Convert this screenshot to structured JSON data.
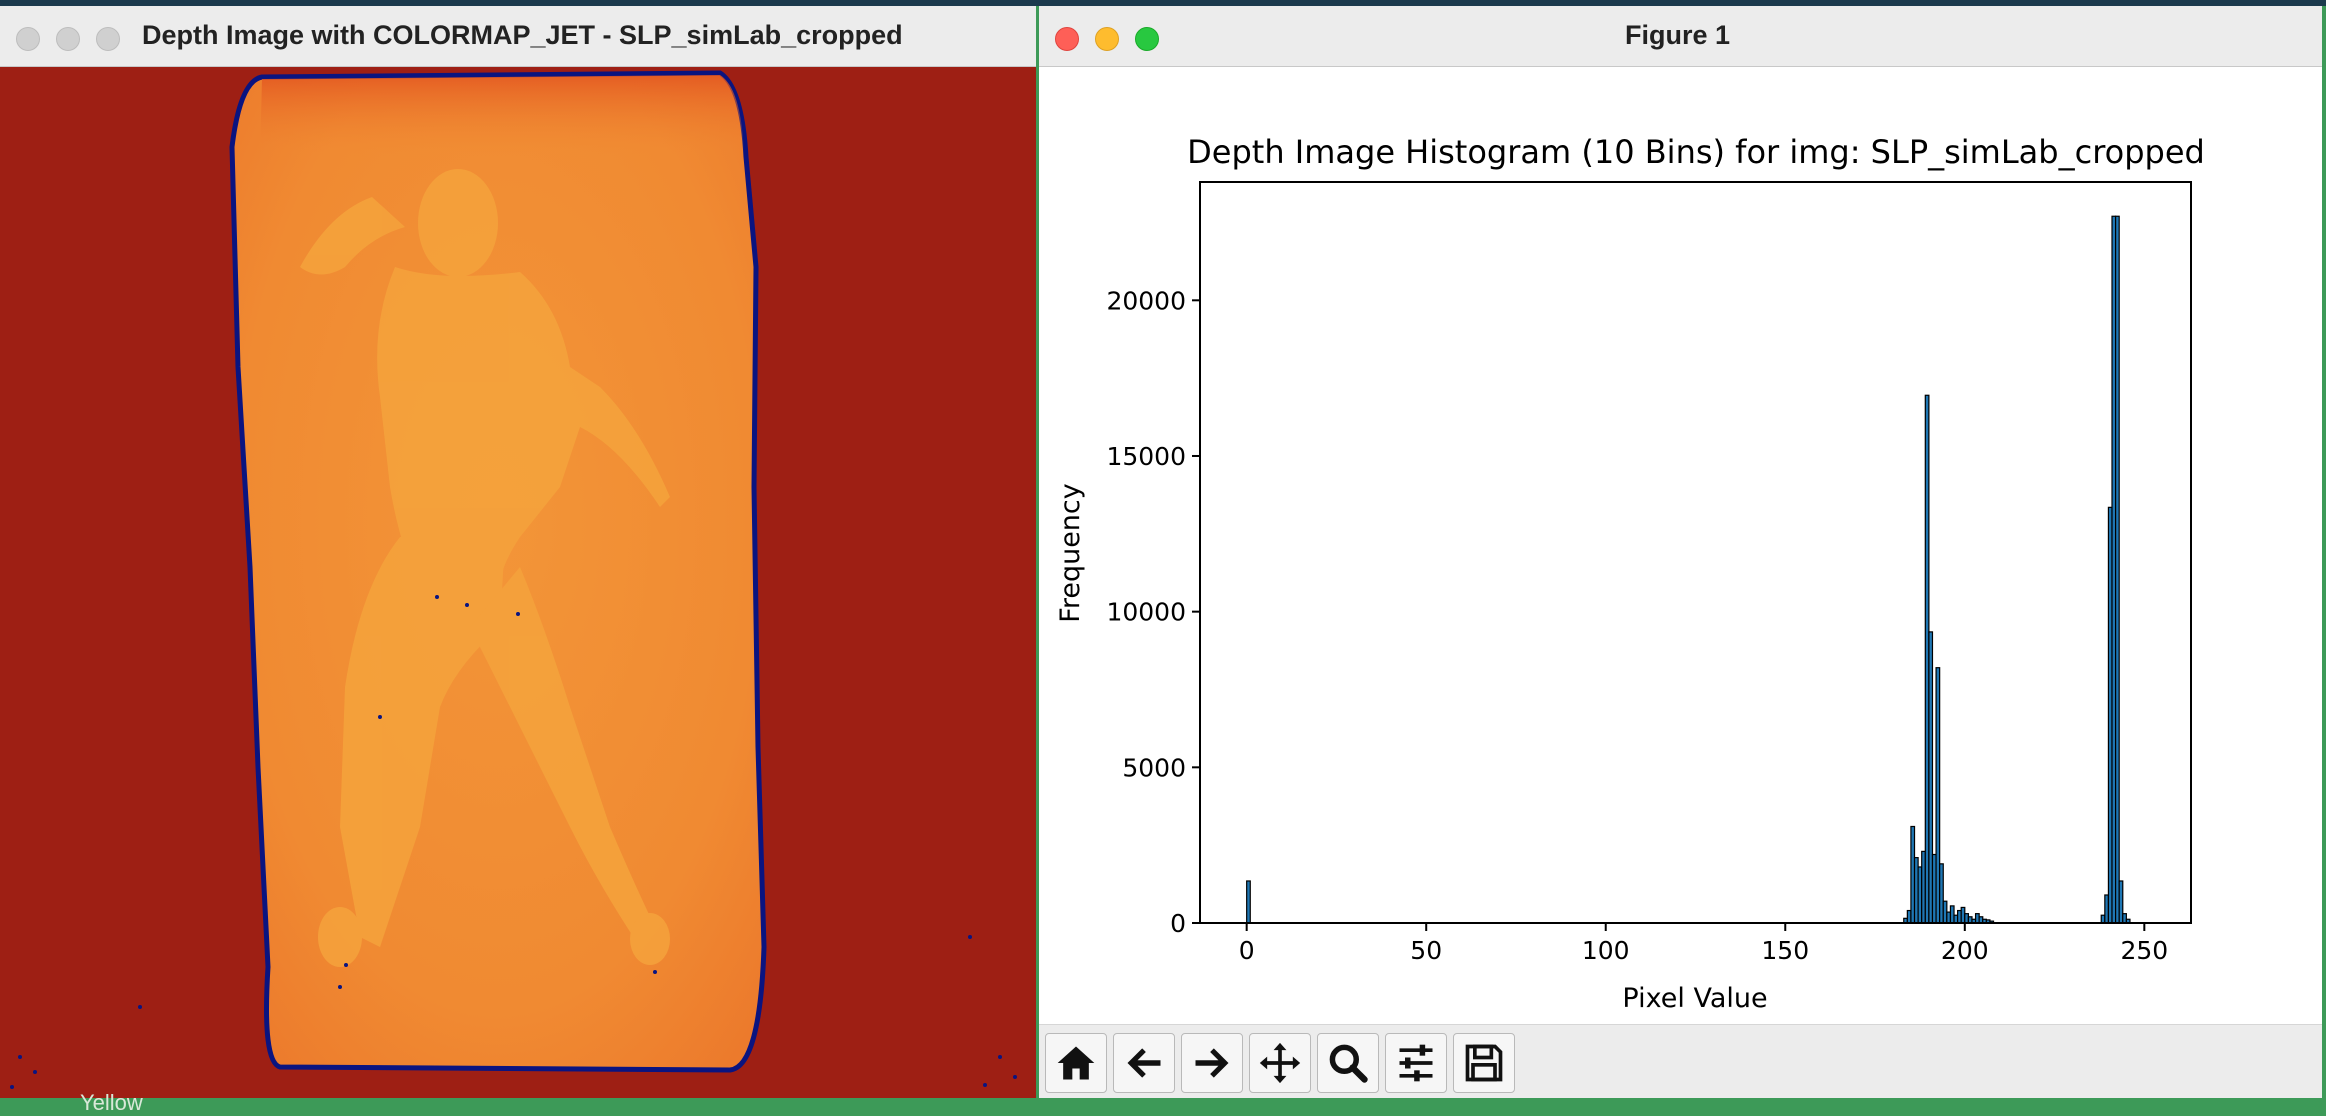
{
  "left_window": {
    "title": "Depth Image with COLORMAP_JET - SLP_simLab_cropped"
  },
  "right_window": {
    "title": "Figure 1",
    "toolbar": [
      {
        "icon": "home-icon",
        "name": "home-button"
      },
      {
        "icon": "back-arrow-icon",
        "name": "back-button"
      },
      {
        "icon": "forward-arrow-icon",
        "name": "forward-button"
      },
      {
        "icon": "pan-icon",
        "name": "pan-button"
      },
      {
        "icon": "zoom-icon",
        "name": "zoom-button"
      },
      {
        "icon": "sliders-icon",
        "name": "configure-subplots-button"
      },
      {
        "icon": "save-icon",
        "name": "save-button"
      }
    ]
  },
  "background_label": "Yellow",
  "colors": {
    "bar_fill": "#1f77b4",
    "bar_edge": "#000000",
    "depth_background": "#9e1f14",
    "depth_mattress": "#f18a32",
    "depth_border": "#0a1480"
  },
  "chart_data": {
    "type": "bar",
    "title": "Depth Image Histogram (10 Bins) for img: SLP_simLab_cropped",
    "xlabel": "Pixel Value",
    "ylabel": "Frequency",
    "xlim": [
      -13,
      263
    ],
    "ylim": [
      0,
      23800
    ],
    "xticks": [
      0,
      50,
      100,
      150,
      200,
      250
    ],
    "yticks": [
      0,
      5000,
      10000,
      15000,
      20000
    ],
    "bin_width": 1,
    "bars": [
      {
        "x": 0,
        "value": 1350
      },
      {
        "x": 183,
        "value": 150
      },
      {
        "x": 184,
        "value": 400
      },
      {
        "x": 185,
        "value": 3100
      },
      {
        "x": 186,
        "value": 2100
      },
      {
        "x": 187,
        "value": 1800
      },
      {
        "x": 188,
        "value": 2300
      },
      {
        "x": 189,
        "value": 16950
      },
      {
        "x": 190,
        "value": 9350
      },
      {
        "x": 191,
        "value": 2200
      },
      {
        "x": 192,
        "value": 8200
      },
      {
        "x": 193,
        "value": 1900
      },
      {
        "x": 194,
        "value": 700
      },
      {
        "x": 195,
        "value": 350
      },
      {
        "x": 196,
        "value": 550
      },
      {
        "x": 197,
        "value": 250
      },
      {
        "x": 198,
        "value": 400
      },
      {
        "x": 199,
        "value": 500
      },
      {
        "x": 200,
        "value": 300
      },
      {
        "x": 201,
        "value": 200
      },
      {
        "x": 202,
        "value": 120
      },
      {
        "x": 203,
        "value": 300
      },
      {
        "x": 204,
        "value": 200
      },
      {
        "x": 205,
        "value": 120
      },
      {
        "x": 206,
        "value": 100
      },
      {
        "x": 207,
        "value": 60
      },
      {
        "x": 238,
        "value": 250
      },
      {
        "x": 239,
        "value": 900
      },
      {
        "x": 240,
        "value": 13350
      },
      {
        "x": 241,
        "value": 22700
      },
      {
        "x": 242,
        "value": 22700
      },
      {
        "x": 243,
        "value": 1350
      },
      {
        "x": 244,
        "value": 300
      },
      {
        "x": 245,
        "value": 120
      }
    ]
  }
}
